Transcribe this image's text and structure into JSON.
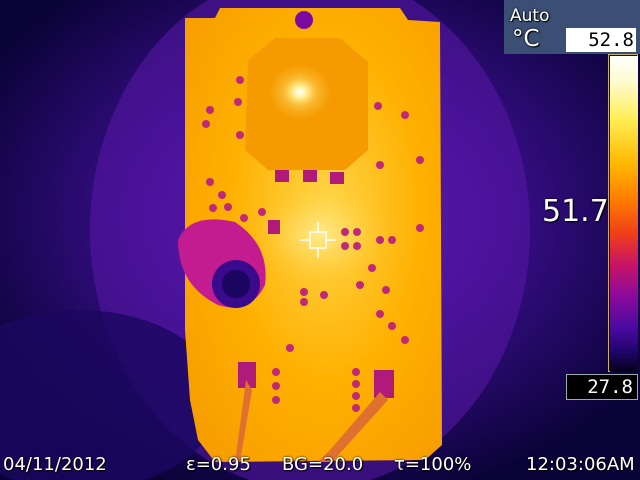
{
  "camera": {
    "range_mode": "Auto",
    "unit": "°C",
    "scale_max": "52.8",
    "scale_min": "27.8",
    "spot_temperature": "51.7"
  },
  "status_bar": {
    "date": "04/11/2012",
    "emissivity": "ε=0.95",
    "background_temperature": "BG=20.0",
    "transmission": "τ=100%",
    "time": "12:03:06AM"
  },
  "colors": {
    "background": "#0c0540",
    "board_hot": "#ffb300",
    "panel": "#3a4f73"
  },
  "icons": {
    "spot": "crosshair-icon"
  }
}
